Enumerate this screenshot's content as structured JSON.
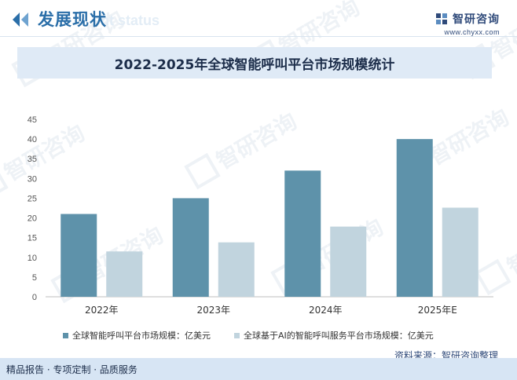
{
  "header": {
    "section_title": "发展现状",
    "section_subtitle": "ent status",
    "brand_name": "智研咨询",
    "brand_url": "www.chyxx.com",
    "brand_color": "#2f4a7a"
  },
  "watermark": {
    "text": "智研咨询",
    "logo_icon": "zhiyan-logo-icon"
  },
  "chart_data": {
    "type": "bar",
    "title": "2022-2025年全球智能呼叫平台市场规模统计",
    "categories": [
      "2022年",
      "2023年",
      "2024年",
      "2025年E"
    ],
    "series": [
      {
        "name": "全球智能呼叫平台市场规模：亿美元",
        "values": [
          21,
          25,
          32,
          40
        ],
        "color": "#5e92aa"
      },
      {
        "name": "全球基于AI的智能呼叫服务平台市场规模：亿美元",
        "values": [
          11.5,
          13.8,
          17.8,
          22.6
        ],
        "color": "#c1d4de"
      }
    ],
    "ylim": [
      0,
      45
    ],
    "yticks": [
      0,
      5,
      10,
      15,
      20,
      25,
      30,
      35,
      40,
      45
    ],
    "grid": false,
    "legend_position": "bottom-left"
  },
  "source": "资料来源：智研咨询整理",
  "footer": {
    "text": "精品报告 · 专项定制 · 品质服务"
  }
}
